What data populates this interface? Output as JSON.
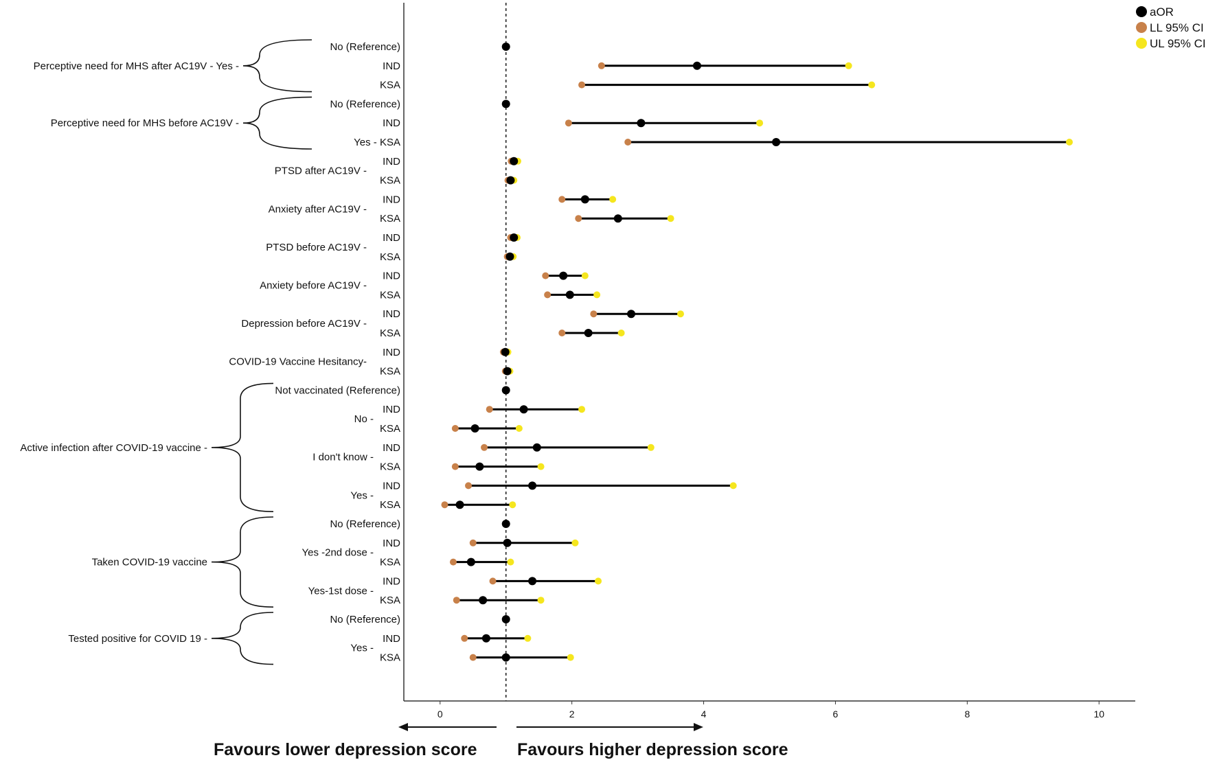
{
  "chart_data": {
    "type": "forest",
    "xlim": [
      -0.55,
      10.55
    ],
    "xticks": [
      0,
      2,
      4,
      6,
      8,
      10
    ],
    "reference_line": 1,
    "colors": {
      "point": "#000000",
      "lower": "#c8814a",
      "upper": "#f5e61e",
      "line": "#000000"
    },
    "legend": [
      {
        "key": "point",
        "label": "aOR"
      },
      {
        "key": "lower",
        "label": "LL 95% CI"
      },
      {
        "key": "upper",
        "label": "UL 95% CI"
      }
    ],
    "rows": [
      {
        "label": "No (Reference)",
        "or": 1,
        "ll": 1,
        "ul": 1
      },
      {
        "label": "IND",
        "or": 3.9,
        "ll": 2.45,
        "ul": 6.2
      },
      {
        "label": "KSA",
        "or": null,
        "ll": 2.15,
        "ul": 6.55
      },
      {
        "label": "No (Reference)",
        "or": 1,
        "ll": 1,
        "ul": 1
      },
      {
        "label": "IND",
        "or": 3.05,
        "ll": 1.95,
        "ul": 4.85
      },
      {
        "label": "Yes - KSA",
        "or": 5.1,
        "ll": 2.85,
        "ul": 9.55
      },
      {
        "label": "IND",
        "or": 1.12,
        "ll": 1.08,
        "ul": 1.18
      },
      {
        "label": "KSA",
        "or": 1.07,
        "ll": 1.03,
        "ul": 1.12
      },
      {
        "label": "IND",
        "or": 2.2,
        "ll": 1.85,
        "ul": 2.62
      },
      {
        "label": "KSA",
        "or": 2.7,
        "ll": 2.1,
        "ul": 3.5
      },
      {
        "label": "IND",
        "or": 1.12,
        "ll": 1.07,
        "ul": 1.17
      },
      {
        "label": "KSA",
        "or": 1.06,
        "ll": 1.02,
        "ul": 1.11
      },
      {
        "label": "IND",
        "or": 1.87,
        "ll": 1.6,
        "ul": 2.2
      },
      {
        "label": "KSA",
        "or": 1.97,
        "ll": 1.63,
        "ul": 2.38
      },
      {
        "label": "IND",
        "or": 2.9,
        "ll": 2.33,
        "ul": 3.65
      },
      {
        "label": "KSA",
        "or": 2.25,
        "ll": 1.85,
        "ul": 2.75
      },
      {
        "label": "IND",
        "or": 0.99,
        "ll": 0.96,
        "ul": 1.03
      },
      {
        "label": "KSA",
        "or": 1.02,
        "ll": 0.99,
        "ul": 1.06
      },
      {
        "label": "Not vaccinated (Reference)",
        "or": 1,
        "ll": 1,
        "ul": 1
      },
      {
        "label": "IND",
        "or": 1.27,
        "ll": 0.75,
        "ul": 2.15
      },
      {
        "label": "KSA",
        "or": 0.53,
        "ll": 0.23,
        "ul": 1.2
      },
      {
        "label": "IND",
        "or": 1.47,
        "ll": 0.67,
        "ul": 3.2
      },
      {
        "label": "KSA",
        "or": 0.6,
        "ll": 0.23,
        "ul": 1.53
      },
      {
        "label": "IND",
        "or": 1.4,
        "ll": 0.43,
        "ul": 4.45
      },
      {
        "label": "KSA",
        "or": 0.3,
        "ll": 0.07,
        "ul": 1.1
      },
      {
        "label": "No (Reference)",
        "or": 1,
        "ll": 1,
        "ul": 1
      },
      {
        "label": "IND",
        "or": 1.02,
        "ll": 0.5,
        "ul": 2.05
      },
      {
        "label": "KSA",
        "or": 0.47,
        "ll": 0.2,
        "ul": 1.07
      },
      {
        "label": "IND",
        "or": 1.4,
        "ll": 0.8,
        "ul": 2.4
      },
      {
        "label": "KSA",
        "or": 0.65,
        "ll": 0.25,
        "ul": 1.53
      },
      {
        "label": "No (Reference)",
        "or": 1,
        "ll": 1,
        "ul": 1
      },
      {
        "label": "IND",
        "or": 0.7,
        "ll": 0.37,
        "ul": 1.33
      },
      {
        "label": "KSA",
        "or": 1,
        "ll": 0.5,
        "ul": 1.98
      }
    ],
    "groups": [
      {
        "label": "Perceptive need for MHS after AC19V - Yes -",
        "first": 0,
        "last": 2,
        "bracket": true
      },
      {
        "label": "Perceptive need for MHS before AC19V -",
        "first": 3,
        "last": 5,
        "bracket": true
      },
      {
        "label": "PTSD after AC19V -",
        "first": 6,
        "last": 7,
        "bracket": false
      },
      {
        "label": "Anxiety after AC19V -",
        "first": 8,
        "last": 9,
        "bracket": false
      },
      {
        "label": "PTSD before AC19V -",
        "first": 10,
        "last": 11,
        "bracket": false
      },
      {
        "label": "Anxiety before AC19V -",
        "first": 12,
        "last": 13,
        "bracket": false
      },
      {
        "label": "Depression before AC19V -",
        "first": 14,
        "last": 15,
        "bracket": false
      },
      {
        "label": "COVID-19 Vaccine Hesitancy-",
        "first": 16,
        "last": 17,
        "bracket": false
      },
      {
        "label": "Active infection after COVID-19 vaccine -",
        "first": 18,
        "last": 24,
        "bracket": true
      },
      {
        "label": "Taken COVID-19 vaccine",
        "first": 25,
        "last": 29,
        "bracket": true
      },
      {
        "label": "Tested positive for COVID 19 -",
        "first": 30,
        "last": 32,
        "bracket": true
      }
    ],
    "subgroups": [
      {
        "label": "No -",
        "first": 19,
        "last": 20
      },
      {
        "label": "I don't know -",
        "first": 21,
        "last": 22
      },
      {
        "label": "Yes -",
        "first": 23,
        "last": 24
      },
      {
        "label": "Yes -2nd dose -",
        "first": 26,
        "last": 27
      },
      {
        "label": "Yes-1st dose -",
        "first": 28,
        "last": 29
      },
      {
        "label": "Yes -",
        "first": 31,
        "last": 32
      }
    ]
  },
  "footer": {
    "left_text": "Favours lower depression score",
    "right_text": "Favours higher depression score"
  }
}
